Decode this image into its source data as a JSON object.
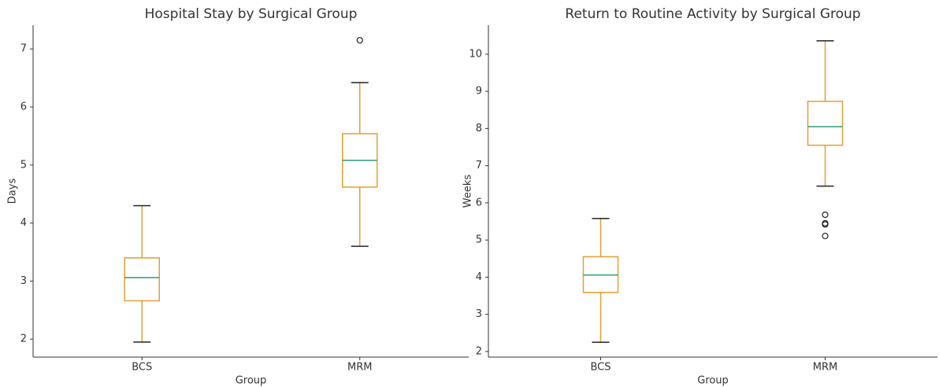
{
  "chart_data": [
    {
      "type": "box",
      "title": "Hospital Stay by Surgical Group",
      "xlabel": "Group",
      "ylabel": "Days",
      "categories": [
        "BCS",
        "MRM"
      ],
      "boxes": [
        {
          "min": 1.95,
          "q1": 2.66,
          "median": 3.06,
          "q3": 3.4,
          "max": 4.3,
          "outliers": []
        },
        {
          "min": 3.6,
          "q1": 4.62,
          "median": 5.08,
          "q3": 5.54,
          "max": 6.42,
          "outliers": [
            7.15
          ]
        }
      ],
      "box_color": "#e0a030",
      "median_color": "#2a9d7f",
      "ylim": [
        1.69,
        7.41
      ],
      "yticks": [
        2,
        3,
        4,
        5,
        6,
        7
      ]
    },
    {
      "type": "box",
      "title": "Return to Routine Activity by Surgical Group",
      "xlabel": "Group",
      "ylabel": "Weeks",
      "categories": [
        "BCS",
        "MRM"
      ],
      "boxes": [
        {
          "min": 2.25,
          "q1": 3.59,
          "median": 4.06,
          "q3": 4.55,
          "max": 5.58,
          "outliers": []
        },
        {
          "min": 6.45,
          "q1": 7.55,
          "median": 8.05,
          "q3": 8.73,
          "max": 10.36,
          "outliers": [
            5.68,
            5.45,
            5.42,
            5.11
          ]
        }
      ],
      "box_color": "#e0a030",
      "median_color": "#2a9d7f",
      "ylim": [
        1.85,
        10.78
      ],
      "yticks": [
        2,
        3,
        4,
        5,
        6,
        7,
        8,
        9,
        10
      ]
    }
  ]
}
